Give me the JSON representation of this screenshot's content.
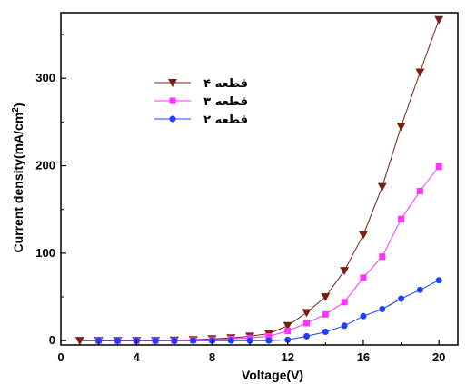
{
  "chart_data": {
    "type": "line",
    "xlabel": "Voltage(V)",
    "ylabel": "Current density(mA/cm",
    "ylabel_sup": "2",
    "ylabel_close": ")",
    "xlim": [
      0,
      21
    ],
    "ylim": [
      -5,
      375
    ],
    "xticks": [
      0,
      4,
      8,
      12,
      16,
      20
    ],
    "yticks": [
      0,
      100,
      200,
      300
    ],
    "grid": false,
    "legend_position": "top-left",
    "series": [
      {
        "name": "قطعه ۴",
        "color": "#7a1f14",
        "marker": "triangle-down",
        "x": [
          1,
          2,
          3,
          4,
          5,
          6,
          7,
          8,
          9,
          10,
          11,
          12,
          13,
          14,
          15,
          16,
          17,
          18,
          19,
          20
        ],
        "y": [
          0,
          0,
          0,
          0,
          0,
          0.5,
          1,
          2,
          3,
          5,
          8,
          17,
          32,
          50,
          80,
          121,
          176,
          245,
          307,
          367
        ]
      },
      {
        "name": "قطعه ۳",
        "color": "#ff33ff",
        "marker": "square",
        "x": [
          2,
          3,
          4,
          5,
          6,
          7,
          8,
          9,
          10,
          11,
          12,
          13,
          14,
          15,
          16,
          17,
          18,
          19,
          20
        ],
        "y": [
          0,
          0,
          0,
          0,
          0,
          0.5,
          1,
          2,
          3,
          5,
          11,
          20,
          30,
          44,
          72,
          96,
          139,
          171,
          199
        ]
      },
      {
        "name": "قطعه ۲",
        "color": "#1f3fff",
        "marker": "circle",
        "x": [
          2,
          3,
          4,
          5,
          6,
          7,
          8,
          9,
          10,
          11,
          12,
          13,
          14,
          15,
          16,
          17,
          18,
          19,
          20
        ],
        "y": [
          0,
          0,
          0,
          0,
          0,
          0,
          0,
          0,
          0,
          0,
          1,
          5,
          10,
          17,
          28,
          36,
          48,
          58,
          69
        ]
      }
    ]
  }
}
